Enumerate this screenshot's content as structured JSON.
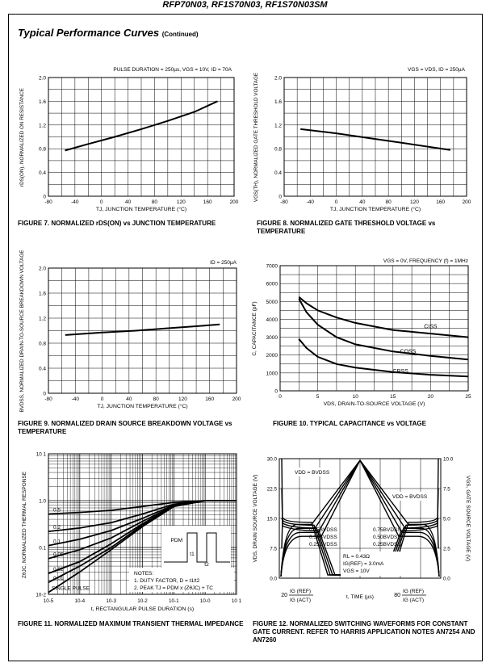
{
  "header": {
    "title": "RFP70N03, RF1S70N03, RF1S70N03SM"
  },
  "section": {
    "title": "Typical Performance Curves",
    "subtitle": "(Continued)"
  },
  "captions": {
    "fig7": "FIGURE 7.  NORMALIZED rDS(ON) vs JUNCTION TEMPERATURE",
    "fig8": "FIGURE 8.  NORMALIZED GATE THRESHOLD VOLTAGE vs TEMPERATURE",
    "fig9": "FIGURE  9.  NORMALIZED DRAIN SOURCE BREAKDOWN VOLTAGE vs TEMPERATURE",
    "fig10": "FIGURE 10.  TYPICAL CAPACITANCE vs VOLTAGE",
    "fig11": "FIGURE  11.  NORMALIZED MAXIMUM TRANSIENT THERMAL IMPEDANCE",
    "fig12": "FIGURE 12.  NORMALIZED SWITCHING WAVEFORMS FOR CONSTANT GATE CURRENT. REFER TO HARRIS APPLICATION NOTES AN7254 AND AN7260"
  },
  "chart_data": [
    {
      "id": "fig7",
      "type": "line",
      "condition": "PULSE DURATION = 250µs, VGS = 10V, ID = 70A",
      "xlabel": "TJ, JUNCTION TEMPERATURE (°C)",
      "ylabel": "rDS(ON), NORMALIZED ON RESISTANCE",
      "xlim": [
        -80,
        200
      ],
      "ylim": [
        0,
        2.0
      ],
      "xticks": [
        "-80",
        "-40",
        "0",
        "40",
        "80",
        "120",
        "160",
        "200"
      ],
      "yticks": [
        "0",
        "0.4",
        "0.8",
        "1.2",
        "1.6",
        "2.0"
      ],
      "grid": true,
      "series": [
        {
          "x": [
            -55,
            -20,
            20,
            60,
            100,
            140,
            175
          ],
          "y": [
            0.77,
            0.88,
            1.0,
            1.13,
            1.27,
            1.42,
            1.6
          ]
        }
      ]
    },
    {
      "id": "fig8",
      "type": "line",
      "condition": "VGS = VDS,  ID = 250µA",
      "xlabel": "TJ, JUNCTION TEMPERATURE (°C)",
      "ylabel": "VGS(TH), NORMALIZED GATE THRESHOLD VOLTAGE",
      "xlim": [
        -80,
        200
      ],
      "ylim": [
        0,
        2.0
      ],
      "xticks": [
        "-80",
        "-40",
        "0",
        "40",
        "80",
        "120",
        "160",
        "200"
      ],
      "yticks": [
        "0",
        "0.4",
        "0.8",
        "1.2",
        "1.6",
        "2.0"
      ],
      "grid": true,
      "series": [
        {
          "x": [
            -55,
            0,
            50,
            100,
            175
          ],
          "y": [
            1.13,
            1.06,
            0.98,
            0.9,
            0.78
          ]
        }
      ]
    },
    {
      "id": "fig9",
      "type": "line",
      "condition": "ID = 250µA",
      "xlabel": "TJ, JUNCTION TEMPERATURE (°C)",
      "ylabel": "BVDSS, NORMALIZED DRAIN-TO-SOURCE BREAKDOWN VOLTAGE",
      "xlim": [
        -80,
        200
      ],
      "ylim": [
        0,
        2.0
      ],
      "xticks": [
        "-80",
        "-40",
        "0",
        "40",
        "80",
        "120",
        "160",
        "200"
      ],
      "yticks": [
        "0",
        "0.4",
        "0.8",
        "1.2",
        "1.6",
        "2.0"
      ],
      "grid": true,
      "series": [
        {
          "x": [
            -55,
            0,
            50,
            100,
            175
          ],
          "y": [
            0.93,
            0.97,
            1.0,
            1.04,
            1.1
          ]
        }
      ]
    },
    {
      "id": "fig10",
      "type": "line",
      "condition": "VGS = 0V, FREQUENCY (f) = 1MHz",
      "xlabel": "VDS, DRAIN-TO-SOURCE VOLTAGE (V)",
      "ylabel": "C, CAPACITANCE (pF)",
      "xlim": [
        0,
        25
      ],
      "ylim": [
        0,
        7000
      ],
      "xticks": [
        "0",
        "5",
        "10",
        "15",
        "20",
        "25"
      ],
      "yticks": [
        "0",
        "1000",
        "2000",
        "3000",
        "4000",
        "5000",
        "6000",
        "7000"
      ],
      "grid": true,
      "series": [
        {
          "name": "CISS",
          "x": [
            2.5,
            3.5,
            5,
            7.5,
            10,
            15,
            20,
            25
          ],
          "y": [
            5250,
            4900,
            4500,
            4100,
            3800,
            3400,
            3200,
            3000
          ]
        },
        {
          "name": "COSS",
          "x": [
            2.5,
            3.5,
            5,
            7.5,
            10,
            15,
            20,
            25
          ],
          "y": [
            5150,
            4400,
            3700,
            3000,
            2600,
            2200,
            1950,
            1750
          ]
        },
        {
          "name": "CRSS",
          "x": [
            2.5,
            3.5,
            5,
            7.5,
            10,
            15,
            20,
            25
          ],
          "y": [
            2900,
            2400,
            1900,
            1500,
            1300,
            1050,
            900,
            800
          ]
        }
      ]
    },
    {
      "id": "fig11",
      "type": "line",
      "xlabel": "t, RECTANGULAR PULSE DURATION (s)",
      "ylabel": "ZθJC, NORMALIZED THERMAL RESPONSE",
      "xscale": "log",
      "yscale": "log",
      "xticks": [
        "10-5",
        "10-4",
        "10-3",
        "10-2",
        "10-1",
        "10-0",
        "10 1"
      ],
      "yticks": [
        "10-2",
        "0.1",
        "1.0",
        "10 1"
      ],
      "grid": true,
      "series": [
        {
          "name": "0.5",
          "x": [
            1e-05,
            0.0001,
            0.001,
            0.01,
            0.1,
            1,
            10
          ],
          "y": [
            0.52,
            0.56,
            0.62,
            0.75,
            0.92,
            1.0,
            1.0
          ]
        },
        {
          "name": "0.2",
          "x": [
            1e-05,
            0.0001,
            0.001,
            0.01,
            0.1,
            1,
            10
          ],
          "y": [
            0.22,
            0.26,
            0.34,
            0.52,
            0.84,
            1.0,
            1.0
          ]
        },
        {
          "name": "0.1",
          "x": [
            1e-05,
            0.0001,
            0.001,
            0.01,
            0.1,
            1,
            10
          ],
          "y": [
            0.11,
            0.15,
            0.23,
            0.42,
            0.8,
            1.0,
            1.0
          ]
        },
        {
          "name": "0.05",
          "x": [
            1e-05,
            0.0001,
            0.001,
            0.01,
            0.1,
            1,
            10
          ],
          "y": [
            0.058,
            0.09,
            0.16,
            0.36,
            0.78,
            1.0,
            1.0
          ]
        },
        {
          "name": "0.02",
          "x": [
            1e-05,
            0.0001,
            0.001,
            0.01,
            0.1,
            1,
            10
          ],
          "y": [
            0.028,
            0.05,
            0.12,
            0.32,
            0.77,
            1.0,
            1.0
          ]
        },
        {
          "name": "0.01",
          "x": [
            1e-05,
            0.0001,
            0.001,
            0.01,
            0.1,
            1,
            10
          ],
          "y": [
            0.018,
            0.04,
            0.1,
            0.3,
            0.76,
            1.0,
            1.0
          ]
        },
        {
          "name": "SINGLE PULSE",
          "x": [
            1e-05,
            0.0001,
            0.001,
            0.01,
            0.1,
            1,
            10
          ],
          "y": [
            0.011,
            0.03,
            0.09,
            0.28,
            0.75,
            1.0,
            1.0
          ]
        }
      ],
      "annotations": {
        "pdm": "PDM",
        "t1": "t1",
        "t2": "t2",
        "notes_title": "NOTES:",
        "note1": "1.  DUTY FACTOR, D = t1/t2",
        "note2": "2.  PEAK TJ = PDM x (ZθJC) + TC"
      }
    },
    {
      "id": "fig12",
      "type": "line",
      "xlabel": "t, TIME (µs)",
      "ylabel_left": "VDS, DRAIN SOURCE VOLTAGE (V)",
      "ylabel_right": "VGS, GATE SOURCE VOLTAGE (V)",
      "ylim_left": [
        0,
        30
      ],
      "ylim_right": [
        0,
        10
      ],
      "yticks_left": [
        "0.0",
        "7.5",
        "15.0",
        "22.5",
        "30.0"
      ],
      "yticks_right": [
        "0.0",
        "2.5",
        "5.0",
        "7.5",
        "10.0"
      ],
      "grid": true,
      "labels": {
        "vdd_left": "VDD = BVDSS",
        "vdd_right": "VDD = BVDSS",
        "l075": "0.75BVDSS",
        "l050": "0.50BVDSS",
        "l025": "0.25BVDSS",
        "r075": "0.75BVDSS",
        "r050": "0.50BVDSS",
        "r025": "0.25BVDSS",
        "rl": "RL = 0.43Ω",
        "ig": "IG(REF) = 3.0mA",
        "vgs": "VGS = 10V",
        "x_left_num": "20",
        "x_right_num": "80",
        "ig_ref": "IG (REF)",
        "ig_act": "IG (ACT)"
      }
    }
  ]
}
